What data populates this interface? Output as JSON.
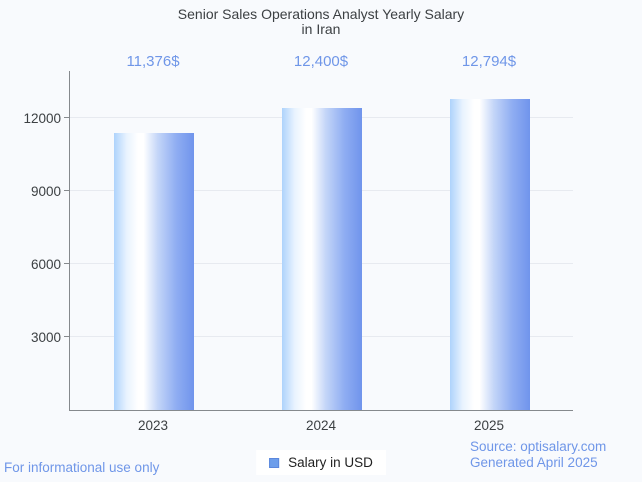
{
  "header": {
    "title_lines": [
      "Senior Sales Operations Analyst Yearly Salary",
      "in Iran"
    ]
  },
  "chart_data": {
    "type": "bar",
    "title": "Senior Sales Operations Analyst Yearly Salary in Iran",
    "categories": [
      "2023",
      "2024",
      "2025"
    ],
    "series": [
      {
        "name": "Salary in USD",
        "values": [
          11376,
          12400,
          12794
        ]
      }
    ],
    "value_labels": [
      "11,376$",
      "12,400$",
      "12,794$"
    ],
    "xlabel": "",
    "ylabel": "",
    "ylim": [
      0,
      13450
    ],
    "yticks": [
      3000,
      6000,
      9000,
      12000
    ],
    "grid": true,
    "legend_position": "bottom"
  },
  "legend": {
    "label": "Salary in USD",
    "swatch_icon": "blue-square-icon"
  },
  "footer": {
    "left_note": "For informational use only",
    "source": "Source: optisalary.com",
    "generated": "Generated April 2025"
  },
  "colors": {
    "bg": "#f8fafd",
    "accent": "#6f96e8",
    "text_dark": "#3c4043",
    "grid": "#e7eaf0",
    "axis": "#85898d",
    "bar_gradient_left": "#aed3fc",
    "bar_gradient_highlight": "#ffffff",
    "bar_gradient_right": "#7094ec",
    "legend_fill": "#6d9eeb"
  }
}
